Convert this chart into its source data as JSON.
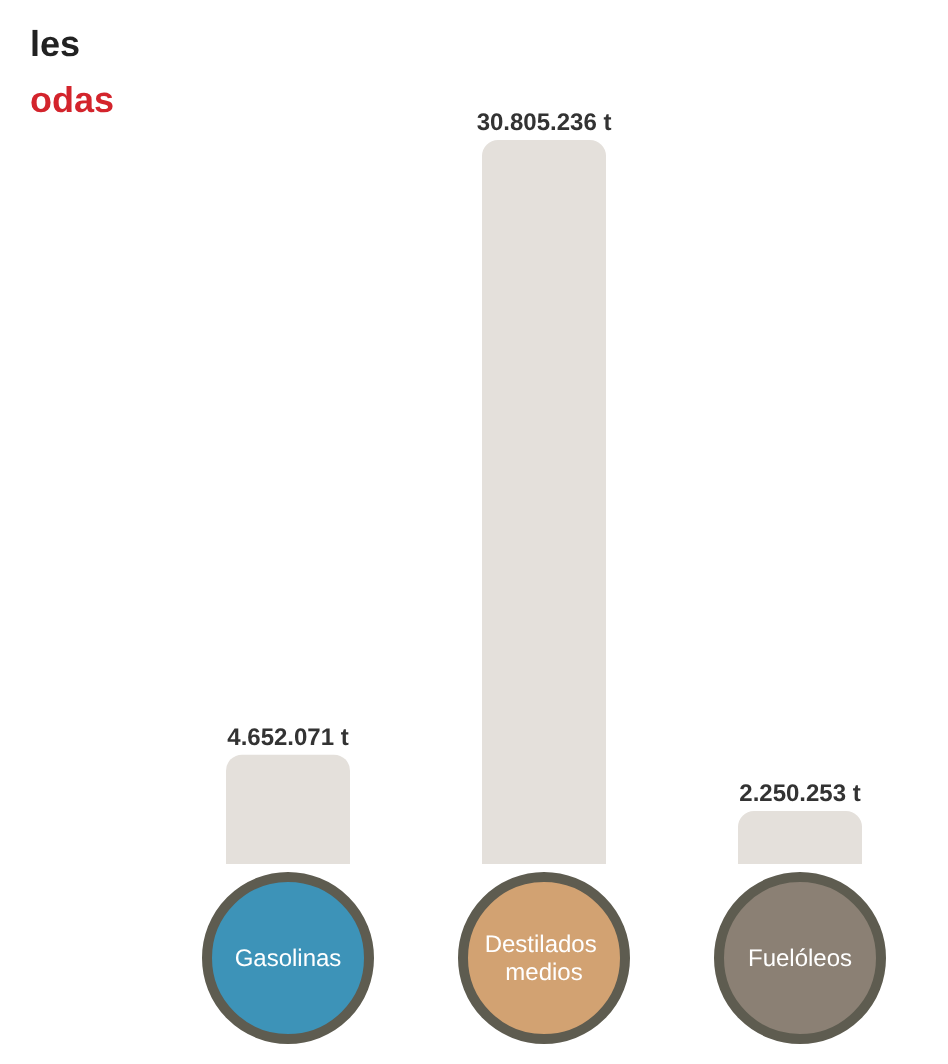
{
  "chart_data": {
    "type": "bar",
    "title": "les",
    "subtitle": "odas",
    "categories": [
      "Gasolinas",
      "Destilados medios",
      "Fuelóleos"
    ],
    "values": [
      4652071,
      30805236,
      2250253
    ],
    "value_labels": [
      "4.652.071 t",
      "30.805.236 t",
      "2.250.253 t"
    ],
    "color": "#e4e0db"
  }
}
